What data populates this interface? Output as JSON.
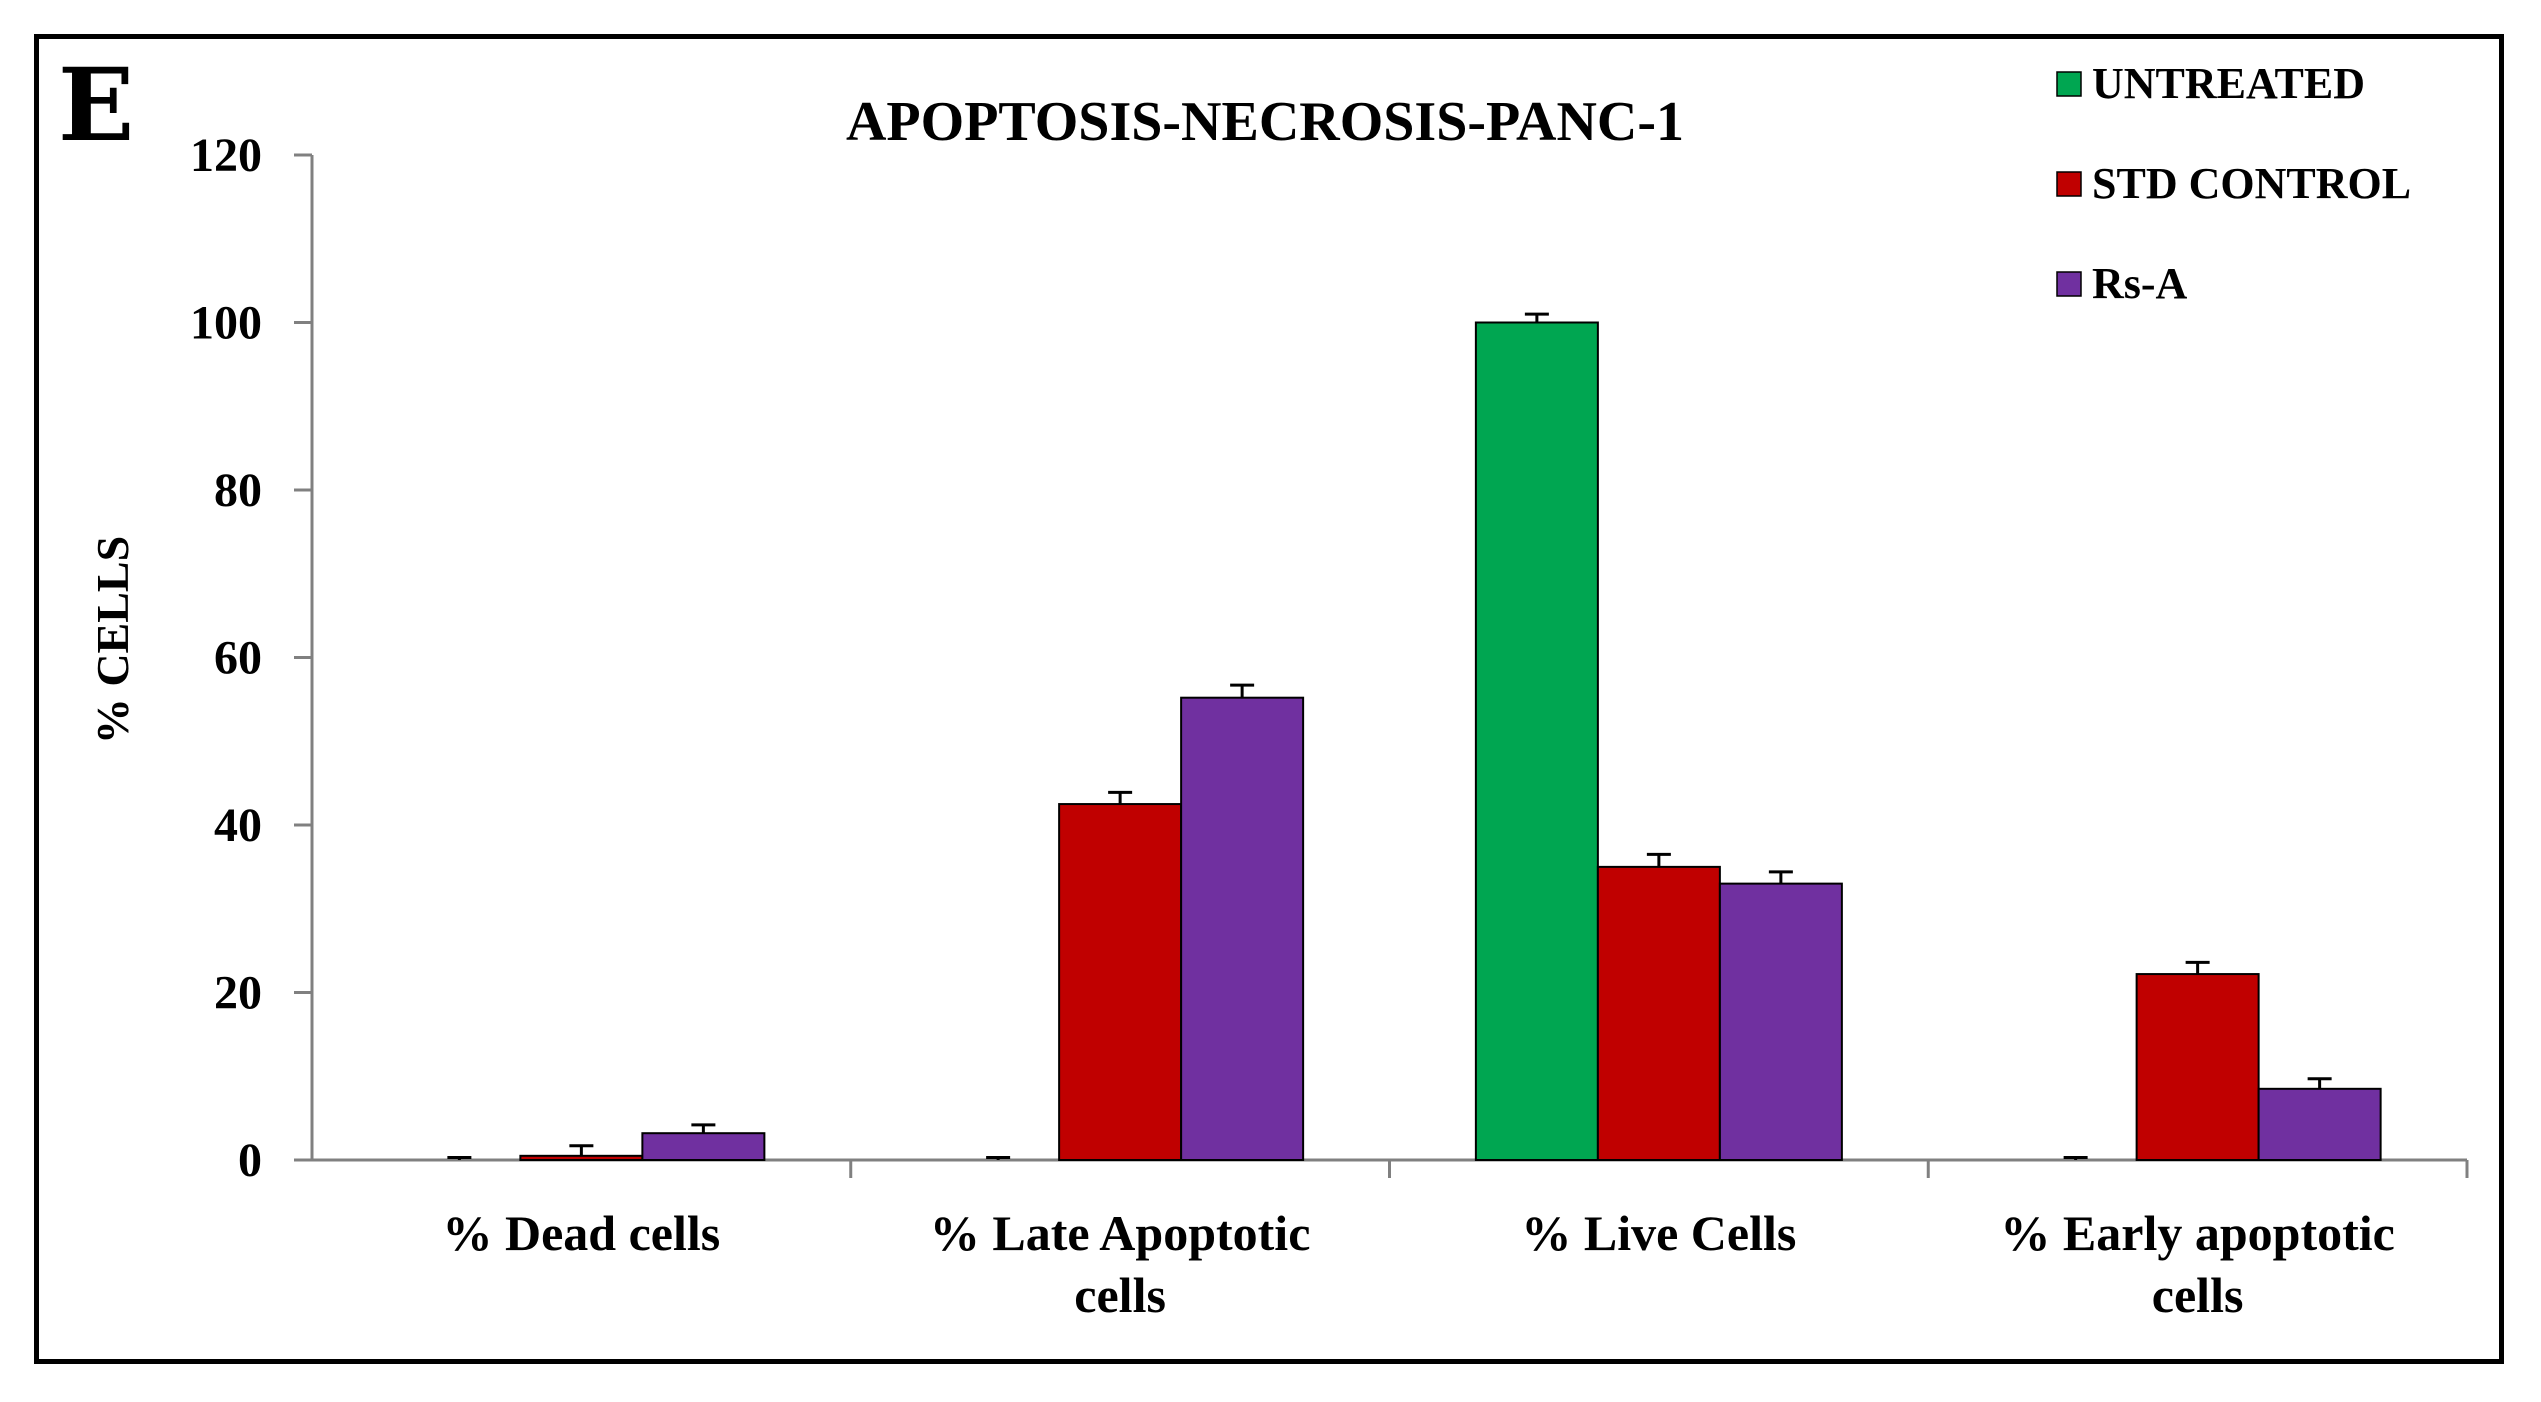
{
  "panel_letter": "E",
  "chart_data": {
    "type": "bar",
    "title": "APOPTOSIS-NECROSIS-PANC-1",
    "xlabel": "",
    "ylabel": "% CELLS",
    "ylim": [
      0,
      120
    ],
    "yticks": [
      0,
      20,
      40,
      60,
      80,
      100,
      120
    ],
    "grid": false,
    "legend_position": "top-right",
    "categories": [
      [
        "% Dead cells"
      ],
      [
        "% Late Apoptotic",
        "cells"
      ],
      [
        "% Live Cells"
      ],
      [
        "% Early apoptotic",
        "cells"
      ]
    ],
    "series": [
      {
        "name": "UNTREATED",
        "color": "#00a651",
        "values": [
          0,
          0,
          100,
          0
        ],
        "errors": [
          0.3,
          0.3,
          1.0,
          0.3
        ]
      },
      {
        "name": "STD CONTROL",
        "color": "#c00000",
        "values": [
          0.5,
          42.5,
          35,
          22.2
        ],
        "errors": [
          1.2,
          1.4,
          1.5,
          1.4
        ]
      },
      {
        "name": "Rs-A",
        "color": "#7030a0",
        "values": [
          3.2,
          55.2,
          33,
          8.5
        ],
        "errors": [
          1.0,
          1.5,
          1.4,
          1.2
        ]
      }
    ]
  }
}
